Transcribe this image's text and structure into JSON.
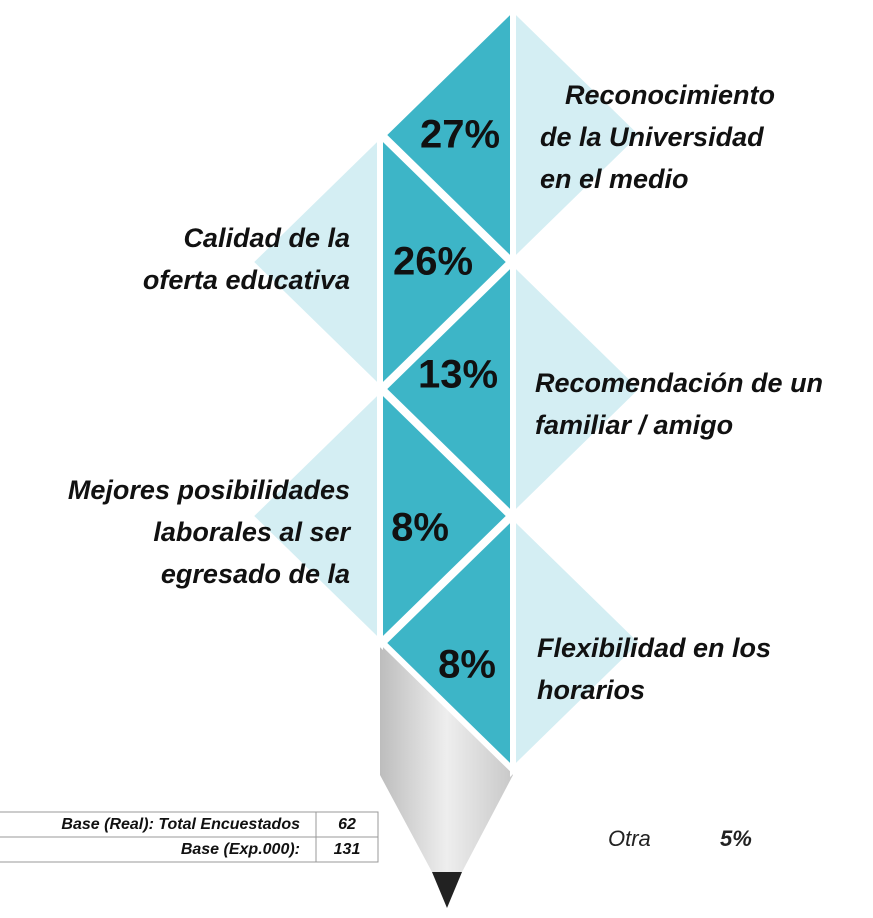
{
  "items": [
    {
      "label": [
        "Reconocimiento",
        "de la Universidad",
        "en el medio"
      ],
      "value": "27%"
    },
    {
      "label": [
        "Calidad de la",
        "oferta educativa"
      ],
      "value": "26%"
    },
    {
      "label": [
        "Recomendación de un",
        "familiar / amigo"
      ],
      "value": "13%"
    },
    {
      "label": [
        "Mejores posibilidades",
        "laborales al ser",
        "egresado de la"
      ],
      "value": "8%"
    },
    {
      "label": [
        "Flexibilidad en los",
        "horarios"
      ],
      "value": "8%"
    }
  ],
  "other": {
    "label": "Otra",
    "value": "5%"
  },
  "table": {
    "rows": [
      [
        "Base (Real): Total Encuestados",
        "62"
      ],
      [
        "Base (Exp.000):",
        "131"
      ]
    ]
  }
}
